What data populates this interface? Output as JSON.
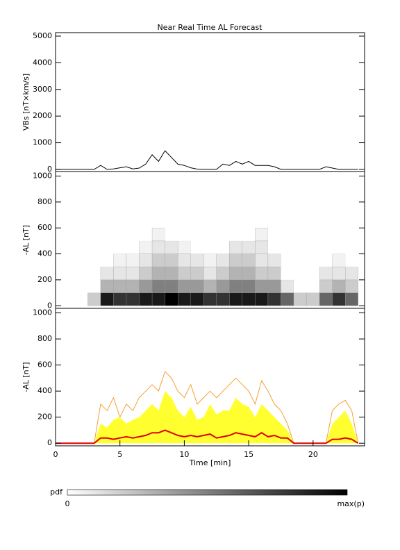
{
  "chart_data": [
    {
      "type": "line",
      "title": "Near Real Time AL Forecast",
      "ylabel": "VBs [nT×km/s]",
      "x": [
        0,
        0.5,
        1,
        1.5,
        2,
        2.5,
        3,
        3.5,
        4,
        4.5,
        5,
        5.5,
        6,
        6.5,
        7,
        7.5,
        8,
        8.5,
        9,
        9.5,
        10,
        10.5,
        11,
        11.5,
        12,
        12.5,
        13,
        13.5,
        14,
        14.5,
        15,
        15.5,
        16,
        16.5,
        17,
        17.5,
        18,
        18.5,
        19,
        19.5,
        20,
        20.5,
        21,
        21.5,
        22,
        22.5,
        23,
        23.5
      ],
      "series": [
        {
          "color": "#000000",
          "values": [
            0,
            0,
            0,
            0,
            0,
            0,
            0,
            150,
            0,
            20,
            60,
            100,
            20,
            50,
            200,
            550,
            300,
            700,
            450,
            200,
            150,
            60,
            10,
            0,
            0,
            0,
            200,
            150,
            300,
            200,
            300,
            150,
            150,
            150,
            100,
            0,
            0,
            0,
            0,
            0,
            0,
            0,
            100,
            50,
            0,
            0,
            0,
            0
          ]
        }
      ],
      "xlim": [
        0,
        24
      ],
      "ylim": [
        -80,
        5130
      ],
      "yticks": [
        0,
        1000,
        2000,
        3000,
        4000,
        5000
      ]
    },
    {
      "type": "heatmap",
      "ylabel": "-AL [nT]",
      "x": [
        3,
        4,
        5,
        6,
        7,
        8,
        9,
        10,
        11,
        12,
        13,
        14,
        15,
        16,
        17,
        18,
        19,
        20,
        21,
        22,
        23
      ],
      "y": [
        0,
        100,
        200,
        300,
        400,
        500
      ],
      "z": [
        [
          0.2,
          0.9,
          0.8,
          0.8,
          0.9,
          0.9,
          1,
          0.9,
          0.9,
          0.8,
          0.8,
          0.9,
          0.9,
          0.9,
          0.8,
          0.6,
          0.2,
          0.2,
          0.6,
          0.8,
          0.6
        ],
        [
          0,
          0.3,
          0.3,
          0.3,
          0.4,
          0.5,
          0.5,
          0.4,
          0.4,
          0.3,
          0.4,
          0.5,
          0.5,
          0.4,
          0.4,
          0.1,
          0,
          0,
          0.2,
          0.3,
          0.2
        ],
        [
          0,
          0.1,
          0.1,
          0.1,
          0.2,
          0.3,
          0.3,
          0.2,
          0.2,
          0.1,
          0.2,
          0.3,
          0.3,
          0.2,
          0.2,
          0,
          0,
          0,
          0.1,
          0.1,
          0.1
        ],
        [
          0,
          0,
          0.05,
          0.05,
          0.1,
          0.2,
          0.2,
          0.1,
          0.1,
          0.05,
          0.1,
          0.2,
          0.2,
          0.1,
          0.1,
          0,
          0,
          0,
          0,
          0.05,
          0
        ],
        [
          0,
          0,
          0,
          0,
          0.05,
          0.1,
          0.1,
          0.05,
          0,
          0,
          0,
          0.1,
          0.1,
          0.1,
          0,
          0,
          0,
          0,
          0,
          0,
          0
        ],
        [
          0,
          0,
          0,
          0,
          0,
          0.05,
          0,
          0,
          0,
          0,
          0,
          0,
          0,
          0.05,
          0,
          0,
          0,
          0,
          0,
          0,
          0
        ]
      ],
      "xlim": [
        0,
        24
      ],
      "ylim": [
        -20,
        1035
      ],
      "yticks": [
        0,
        200,
        400,
        600,
        800,
        1000
      ]
    },
    {
      "type": "line",
      "ylabel": "-AL [nT]",
      "xlabel": "Time [min]",
      "x": [
        0,
        0.5,
        1,
        1.5,
        2,
        2.5,
        3,
        3.5,
        4,
        4.5,
        5,
        5.5,
        6,
        6.5,
        7,
        7.5,
        8,
        8.5,
        9,
        9.5,
        10,
        10.5,
        11,
        11.5,
        12,
        12.5,
        13,
        13.5,
        14,
        14.5,
        15,
        15.5,
        16,
        16.5,
        17,
        17.5,
        18,
        18.5,
        19,
        19.5,
        20,
        20.5,
        21,
        21.5,
        22,
        22.5,
        23,
        23.5
      ],
      "series": [
        {
          "color": "#f5a030",
          "values": [
            0,
            0,
            0,
            0,
            0,
            0,
            0,
            300,
            250,
            350,
            200,
            300,
            250,
            350,
            400,
            450,
            400,
            550,
            500,
            400,
            350,
            450,
            300,
            350,
            400,
            350,
            400,
            450,
            500,
            450,
            400,
            300,
            480,
            400,
            300,
            250,
            150,
            0,
            0,
            0,
            0,
            0,
            0,
            250,
            300,
            330,
            250,
            0
          ]
        },
        {
          "color": "#ffff30",
          "fill": true,
          "values": [
            0,
            0,
            0,
            0,
            0,
            0,
            0,
            150,
            120,
            180,
            200,
            150,
            180,
            200,
            250,
            300,
            250,
            400,
            350,
            250,
            200,
            280,
            180,
            200,
            300,
            220,
            250,
            250,
            350,
            300,
            280,
            200,
            300,
            250,
            200,
            150,
            100,
            0,
            0,
            0,
            0,
            0,
            0,
            150,
            200,
            250,
            150,
            0
          ]
        },
        {
          "color": "#e00000",
          "values": [
            0,
            0,
            0,
            0,
            0,
            0,
            0,
            40,
            40,
            30,
            40,
            50,
            40,
            50,
            60,
            80,
            80,
            100,
            80,
            60,
            50,
            60,
            50,
            60,
            70,
            40,
            50,
            60,
            80,
            70,
            60,
            50,
            80,
            50,
            60,
            40,
            40,
            0,
            0,
            0,
            0,
            0,
            0,
            30,
            30,
            40,
            30,
            0
          ]
        }
      ],
      "xlim": [
        0,
        24
      ],
      "ylim": [
        -20,
        1035
      ],
      "xticks": [
        0,
        5,
        10,
        15,
        20
      ],
      "yticks": [
        0,
        200,
        400,
        600,
        800,
        1000
      ]
    }
  ],
  "colorbar": {
    "label": "pdf",
    "min_label": "0",
    "max_label": "max(p)"
  }
}
